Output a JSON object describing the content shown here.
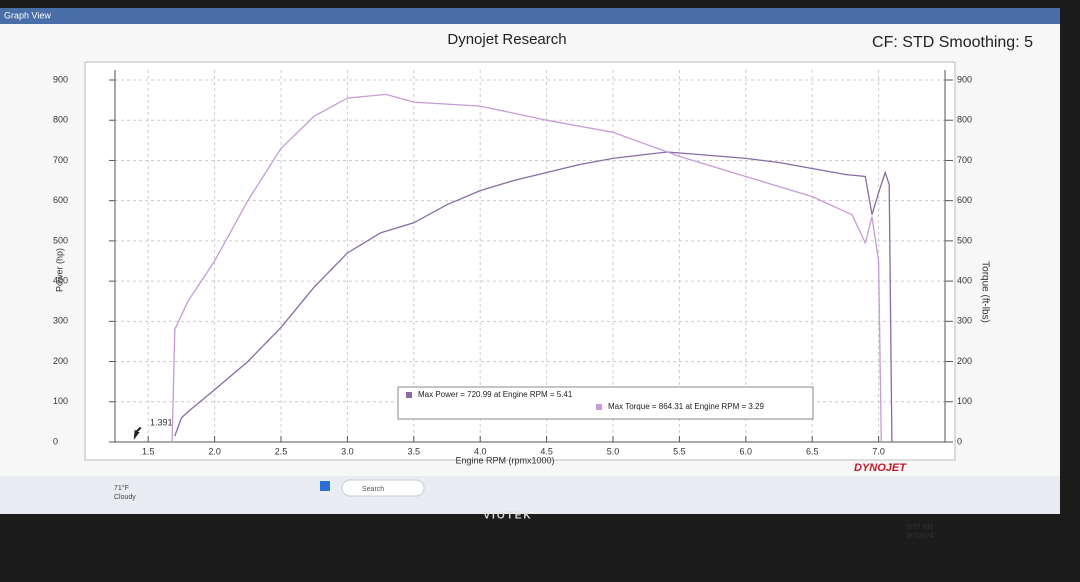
{
  "window": {
    "title": "Graph View"
  },
  "chart_data": {
    "type": "line",
    "title": "Dynojet Research",
    "subtitle": "CF: STD Smoothing: 5",
    "x_label": "Engine RPM (rpmx1000)",
    "y_label": "Power (hp)",
    "y2_label": "Torque (ft-lbs)",
    "annotation": "1.391",
    "logo": "DYNOJET",
    "xlim": [
      1.25,
      7.5
    ],
    "xticks": [
      1.5,
      {
        "value": 2,
        "label": "2.0"
      },
      2.5,
      {
        "value": 3,
        "label": "3.0"
      },
      3.5,
      {
        "value": 4,
        "label": "4.0"
      },
      4.5,
      {
        "value": 5,
        "label": "5.0"
      },
      5.5,
      {
        "value": 6,
        "label": "6.0"
      },
      6.5,
      {
        "value": 7,
        "label": "7.0"
      }
    ],
    "ylim": [
      0,
      900
    ],
    "yticks": [
      0,
      100,
      200,
      300,
      400,
      500,
      600,
      700,
      800,
      900
    ],
    "y2lim": [
      0,
      900
    ],
    "y2ticks": [
      0,
      100,
      200,
      300,
      400,
      500,
      600,
      700,
      800,
      900
    ],
    "grid": true,
    "legend_position": "bottom",
    "series": [
      {
        "name": "Max Power = 720.99 at Engine RPM = 5.41",
        "color": "#8a6aa6",
        "axis": "y",
        "x": [
          1.7,
          1.75,
          1.8,
          2.0,
          2.25,
          2.5,
          2.75,
          3.0,
          3.25,
          3.5,
          3.75,
          4.0,
          4.25,
          4.5,
          4.75,
          5.0,
          5.25,
          5.41,
          5.75,
          6.0,
          6.25,
          6.5,
          6.75,
          6.9,
          6.95,
          7.0,
          7.05,
          7.08,
          7.1
        ],
        "values": [
          15,
          60,
          75,
          130,
          200,
          285,
          385,
          470,
          520,
          545,
          590,
          625,
          650,
          670,
          690,
          705,
          715,
          721,
          712,
          705,
          695,
          680,
          665,
          660,
          565,
          620,
          670,
          640,
          0
        ]
      },
      {
        "name": "Max Torque = 864.31 at Engine RPM = 3.29",
        "color": "#c79ad9",
        "axis": "y2",
        "x": [
          1.68,
          1.7,
          1.8,
          2.0,
          2.25,
          2.5,
          2.75,
          3.0,
          3.29,
          3.5,
          4.0,
          4.5,
          5.0,
          5.5,
          6.0,
          6.5,
          6.8,
          6.9,
          6.95,
          7.0,
          7.02
        ],
        "values": [
          0,
          280,
          350,
          450,
          600,
          730,
          810,
          855,
          864.31,
          845,
          835,
          800,
          770,
          710,
          660,
          610,
          565,
          495,
          560,
          450,
          0
        ]
      }
    ]
  },
  "taskbar": {
    "weather_temp": "71°F",
    "weather_text": "Cloudy",
    "search": "Search",
    "time": "9:37 PM",
    "date": "3/7/2024"
  },
  "monitor": {
    "brand": "VIOTEK"
  }
}
